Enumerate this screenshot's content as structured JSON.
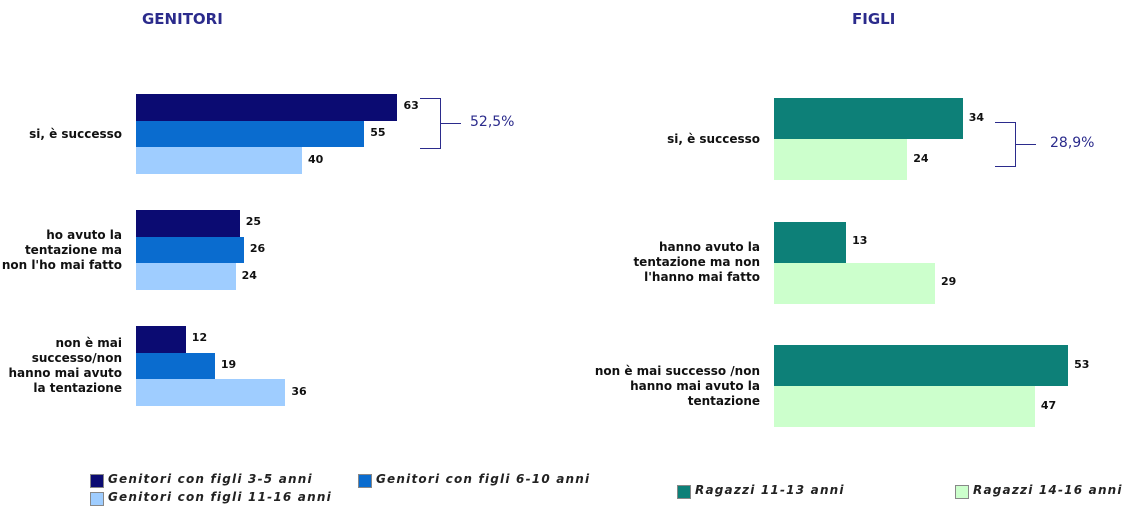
{
  "chart_data": [
    {
      "type": "bar",
      "orientation": "horizontal",
      "title": "GENITORI",
      "categories": [
        "si, è successo",
        "ho avuto la tentazione ma non l'ho mai fatto",
        "non è mai successo/non hanno mai avuto la tentazione"
      ],
      "series": [
        {
          "name": "Genitori con figli 3-5 anni",
          "color": "#0b0b72",
          "values": [
            63,
            25,
            12
          ]
        },
        {
          "name": "Genitori con figli 6-10 anni",
          "color": "#0a6ccf",
          "values": [
            55,
            26,
            19
          ]
        },
        {
          "name": "Genitori con figli 11-16 anni",
          "color": "#9fcdff",
          "values": [
            40,
            24,
            36
          ]
        }
      ],
      "annotation": "52,5%"
    },
    {
      "type": "bar",
      "orientation": "horizontal",
      "title": "FIGLI",
      "categories": [
        "si, è successo",
        "hanno avuto la tentazione ma non l'hanno mai fatto",
        "non è mai successo /non hanno mai avuto la tentazione"
      ],
      "series": [
        {
          "name": "Ragazzi 11-13 anni",
          "color": "#0d8078",
          "values": [
            34,
            13,
            53
          ]
        },
        {
          "name": "Ragazzi 14-16 anni",
          "color": "#ccffcc",
          "values": [
            24,
            29,
            47
          ]
        }
      ],
      "annotation": "28,9%"
    }
  ]
}
